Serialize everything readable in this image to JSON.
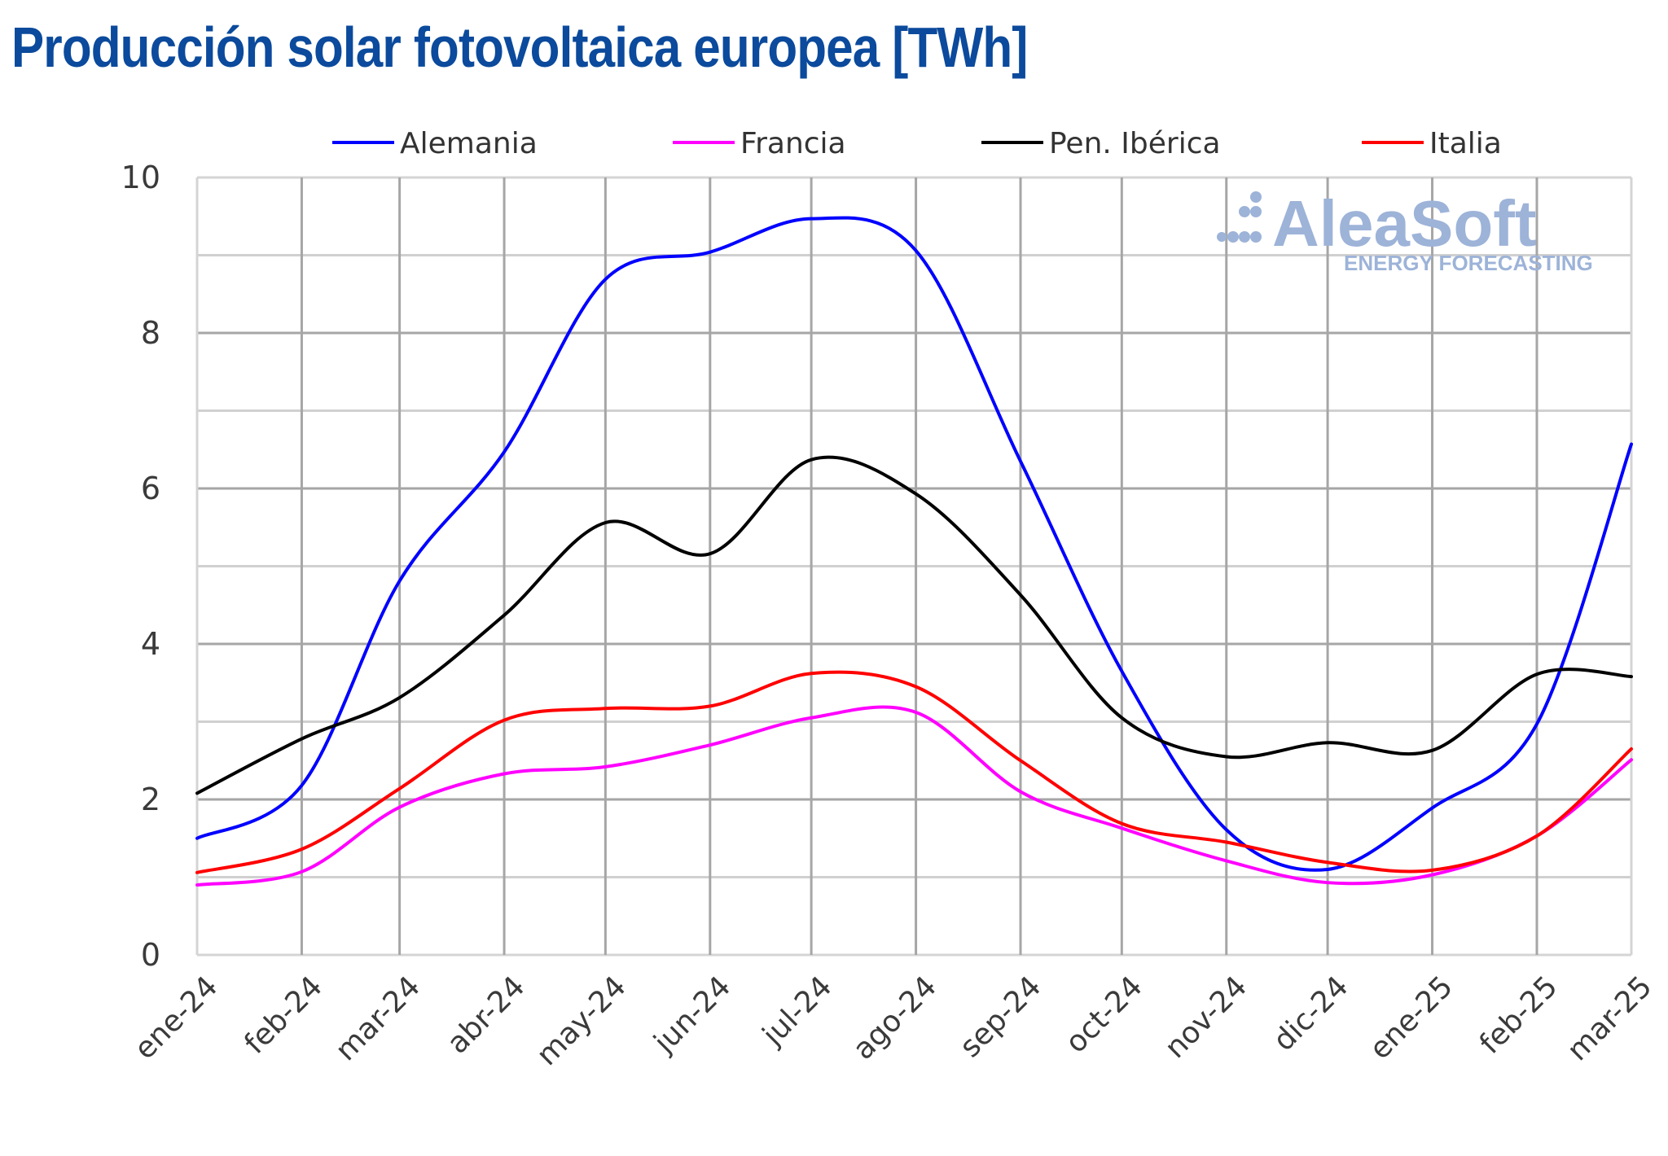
{
  "title": "Producción solar fotovoltaica europea [TWh]",
  "watermark": {
    "brand": "AleaSoft",
    "tagline": "ENERGY FORECASTING",
    "color": "#9db3d8"
  },
  "chart_data": {
    "type": "line",
    "title": "Producción solar fotovoltaica europea [TWh]",
    "xlabel": "",
    "ylabel": "",
    "ylim": [
      0,
      10
    ],
    "yticks": [
      0,
      2,
      4,
      6,
      8,
      10
    ],
    "ytick_labels": [
      "0",
      "2",
      "4",
      "6",
      "8",
      "10"
    ],
    "minor_y_step": 1,
    "grid": true,
    "smooth": true,
    "legend_position": "top",
    "x": [
      "ene-24",
      "feb-24",
      "mar-24",
      "abr-24",
      "may-24",
      "jun-24",
      "jul-24",
      "ago-24",
      "sep-24",
      "oct-24",
      "nov-24",
      "dic-24",
      "ene-25",
      "feb-25",
      "mar-25"
    ],
    "x_dates": [
      "2024-01-01",
      "2024-02-01",
      "2024-03-01",
      "2024-04-01",
      "2024-05-01",
      "2024-06-01",
      "2024-07-01",
      "2024-08-01",
      "2024-09-01",
      "2024-10-01",
      "2024-11-01",
      "2024-12-01",
      "2025-01-01",
      "2025-02-01",
      "2025-03-01"
    ],
    "series": [
      {
        "name": "Alemania",
        "color": "#0000ff",
        "values": [
          1.5,
          2.18,
          4.81,
          6.47,
          8.69,
          9.04,
          9.47,
          9.06,
          6.35,
          3.65,
          1.61,
          1.1,
          1.89,
          2.97,
          6.57
        ]
      },
      {
        "name": "Francia",
        "color": "#ff00ff",
        "values": [
          0.9,
          1.07,
          1.9,
          2.33,
          2.42,
          2.7,
          3.05,
          3.12,
          2.1,
          1.63,
          1.21,
          0.93,
          1.03,
          1.53,
          2.51
        ]
      },
      {
        "name": "Pen. Ibérica",
        "color": "#000000",
        "values": [
          2.08,
          2.78,
          3.31,
          4.37,
          5.56,
          5.16,
          6.37,
          5.93,
          4.63,
          3.05,
          2.55,
          2.73,
          2.63,
          3.61,
          3.58
        ]
      },
      {
        "name": "Italia",
        "color": "#ff0000",
        "values": [
          1.06,
          1.36,
          2.14,
          3.02,
          3.17,
          3.2,
          3.62,
          3.45,
          2.5,
          1.69,
          1.45,
          1.19,
          1.09,
          1.53,
          2.65
        ]
      }
    ]
  }
}
